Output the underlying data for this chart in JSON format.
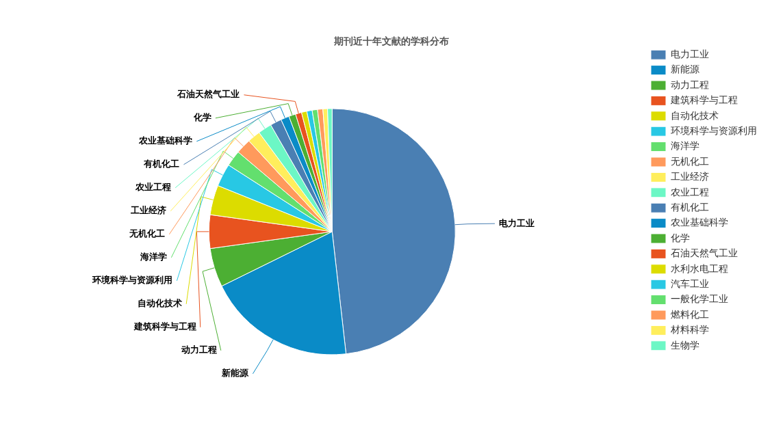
{
  "chart_data": {
    "type": "pie",
    "title": "期刊近十年文献的学科分布",
    "categories": [
      "电力工业",
      "新能源",
      "动力工程",
      "建筑科学与工程",
      "自动化技术",
      "环境科学与资源利用",
      "海洋学",
      "无机化工",
      "工业经济",
      "农业工程",
      "有机化工",
      "农业基础科学",
      "化学",
      "石油天然气工业",
      "水利水电工程",
      "汽车工业",
      "一般化学工业",
      "燃料化工",
      "材料科学",
      "生物学"
    ],
    "values": [
      48.2,
      19.5,
      5.1,
      4.4,
      3.9,
      3.0,
      2.1,
      2.0,
      1.7,
      1.8,
      1.5,
      1.1,
      0.9,
      0.8,
      0.7,
      0.7,
      0.7,
      0.7,
      0.6,
      0.6
    ],
    "colors": [
      "#4a7fb3",
      "#0a8bc7",
      "#4caf33",
      "#e8531f",
      "#dcdc00",
      "#28c8e4",
      "#63df6e",
      "#ff9a5c",
      "#ffee5c",
      "#6cf7c5",
      "#4a7fb3",
      "#0a8bc7",
      "#4caf33",
      "#e8531f",
      "#dcdc00",
      "#28c8e4",
      "#63df6e",
      "#ff9a5c",
      "#ffee5c",
      "#6cf7c5"
    ],
    "legend": "right"
  }
}
